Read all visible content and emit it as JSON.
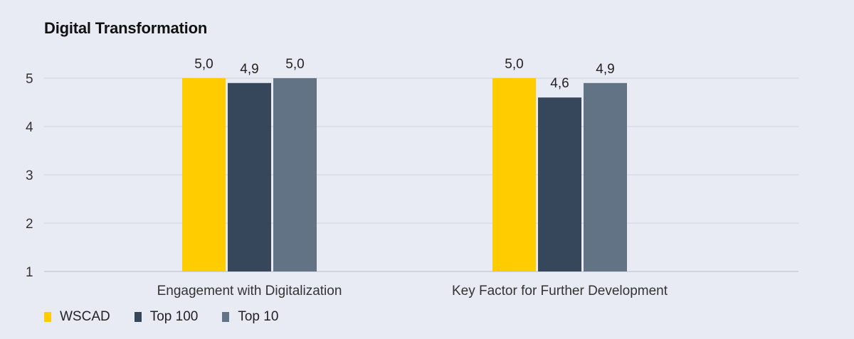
{
  "chart_data": {
    "type": "bar",
    "title": "Digital Transformation",
    "categories": [
      "Engagement with Digitalization",
      "Key Factor for Further Development"
    ],
    "series": [
      {
        "name": "WSCAD",
        "values": [
          5.0,
          5.0
        ],
        "labels": [
          "5,0",
          "5,0"
        ],
        "color": "#ffcc00"
      },
      {
        "name": "Top 100",
        "values": [
          4.9,
          4.6
        ],
        "labels": [
          "4,9",
          "4,6"
        ],
        "color": "#36475c"
      },
      {
        "name": "Top 10",
        "values": [
          5.0,
          4.9
        ],
        "labels": [
          "5,0",
          "4,9"
        ],
        "color": "#627386"
      }
    ],
    "yticks": [
      1,
      2,
      3,
      4,
      5
    ],
    "ylim": [
      1,
      5
    ],
    "xlabel": "",
    "ylabel": "",
    "grid": true,
    "legend_position": "bottom-left"
  }
}
